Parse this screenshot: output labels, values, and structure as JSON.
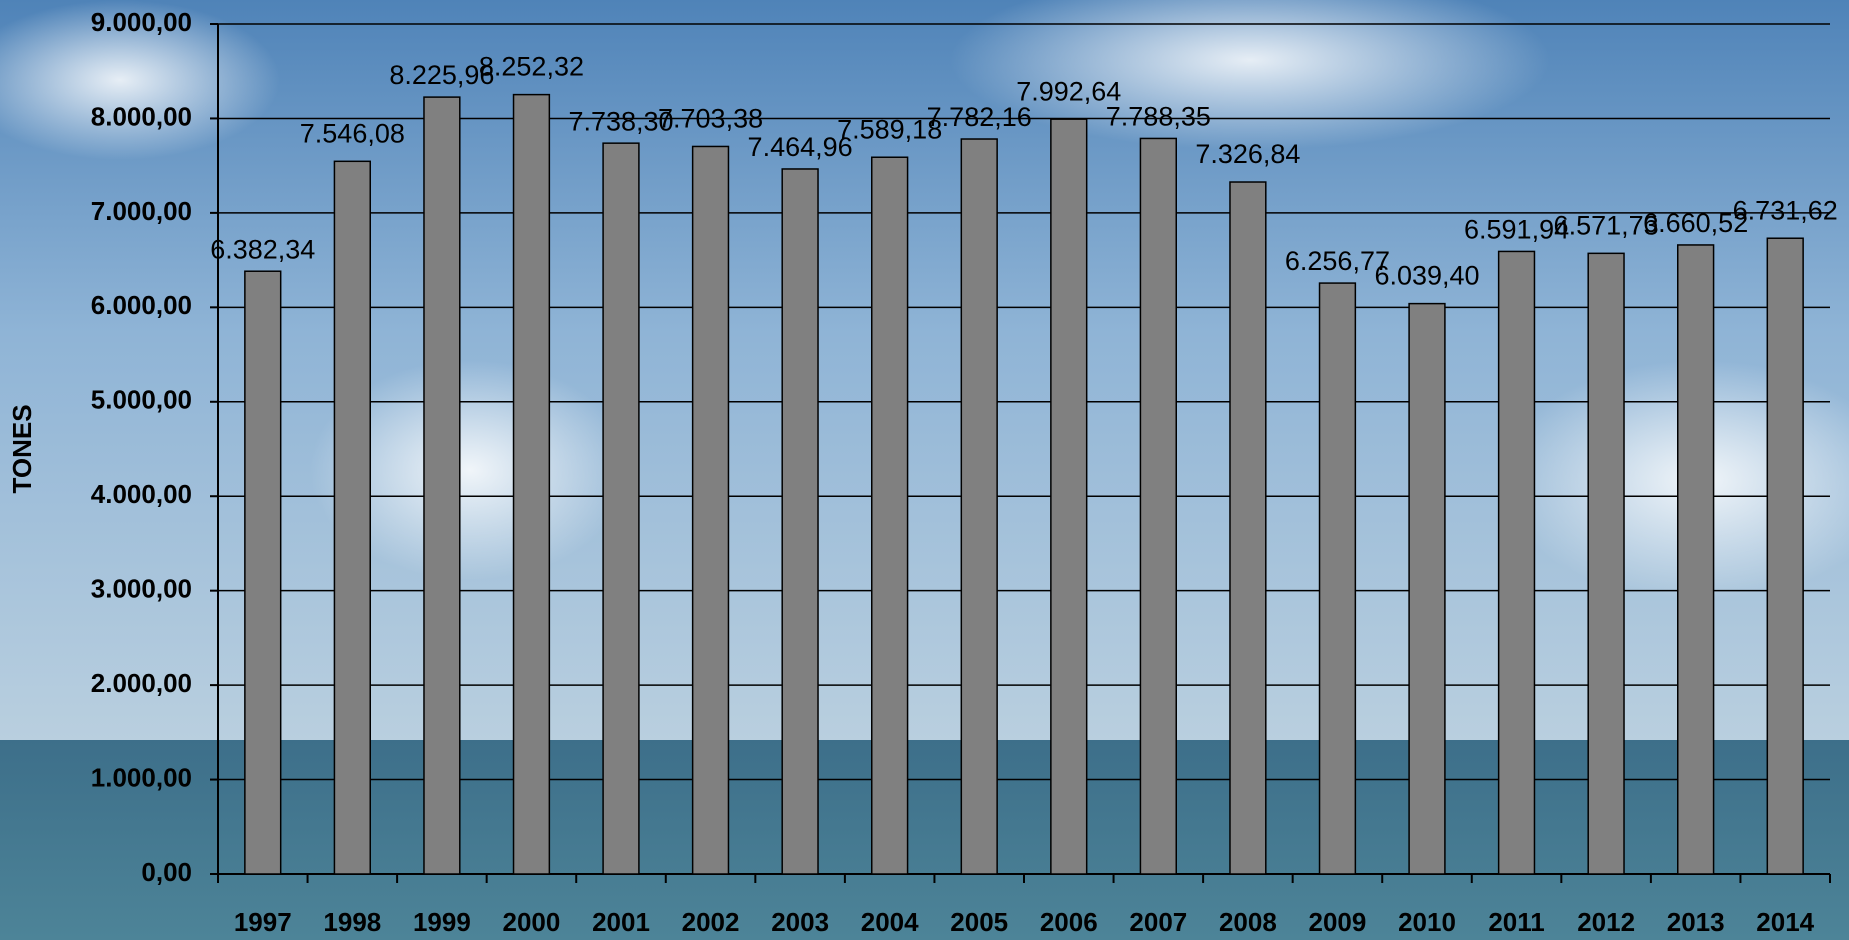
{
  "chart_data": {
    "type": "bar",
    "y_axis_label": "TONES",
    "categories": [
      "1997",
      "1998",
      "1999",
      "2000",
      "2001",
      "2002",
      "2003",
      "2004",
      "2005",
      "2006",
      "2007",
      "2008",
      "2009",
      "2010",
      "2011",
      "2012",
      "2013",
      "2014"
    ],
    "values": [
      6382.34,
      7546.08,
      8225.96,
      8252.32,
      7738.3,
      7703.38,
      7464.96,
      7589.18,
      7782.16,
      7992.64,
      7788.35,
      7326.84,
      6256.77,
      6039.4,
      6591.94,
      6571.73,
      6660.52,
      6731.62
    ],
    "value_labels": [
      "6.382,34",
      "7.546,08",
      "8.225,96",
      "8.252,32",
      "7.738,30",
      "7.703,38",
      "7.464,96",
      "7.589,18",
      "7.782,16",
      "7.992,64",
      "7.788,35",
      "7.326,84",
      "6.256,77",
      "6.039,40",
      "6.591,94",
      "6.571,73",
      "6.660,52",
      "6.731,62"
    ],
    "color": "#808080",
    "ylim": [
      0,
      9000
    ],
    "yticks": [
      {
        "value": 0,
        "label": "0,00"
      },
      {
        "value": 1000,
        "label": "1.000,00"
      },
      {
        "value": 2000,
        "label": "2.000,00"
      },
      {
        "value": 3000,
        "label": "3.000,00"
      },
      {
        "value": 4000,
        "label": "4.000,00"
      },
      {
        "value": 5000,
        "label": "5.000,00"
      },
      {
        "value": 6000,
        "label": "6.000,00"
      },
      {
        "value": 7000,
        "label": "7.000,00"
      },
      {
        "value": 8000,
        "label": "8.000,00"
      },
      {
        "value": 9000,
        "label": "9.000,00"
      }
    ],
    "grid": true
  }
}
